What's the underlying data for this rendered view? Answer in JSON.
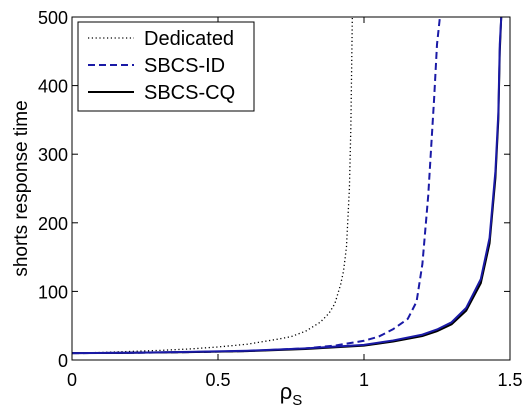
{
  "chart_data": {
    "type": "line",
    "title": "",
    "xlabel": "ρ",
    "xlabel_subscript": "S",
    "ylabel": "shorts response time",
    "xlim": [
      0,
      1.5
    ],
    "ylim": [
      0,
      500
    ],
    "xticks": [
      "0",
      "0.5",
      "1",
      "1.5"
    ],
    "yticks": [
      "0",
      "100",
      "200",
      "300",
      "400",
      "500"
    ],
    "grid": false,
    "legend_position": "top-left",
    "series": [
      {
        "name": "Dedicated",
        "style": "dotted",
        "color": "#000000",
        "x": [
          0.0,
          0.1,
          0.2,
          0.3,
          0.4,
          0.5,
          0.6,
          0.7,
          0.75,
          0.8,
          0.85,
          0.88,
          0.9,
          0.92,
          0.93,
          0.94,
          0.95,
          0.955,
          0.96
        ],
        "y": [
          10,
          11,
          12.5,
          14,
          16,
          19,
          23,
          30,
          34,
          42,
          55,
          68,
          82,
          110,
          130,
          165,
          250,
          340,
          500
        ]
      },
      {
        "name": "SBCS-ID",
        "style": "dashed",
        "color": "#1a1aa6",
        "x": [
          0.0,
          0.2,
          0.4,
          0.6,
          0.8,
          0.9,
          1.0,
          1.05,
          1.1,
          1.15,
          1.18,
          1.2,
          1.22,
          1.24,
          1.25,
          1.26
        ],
        "y": [
          10,
          10.5,
          11.5,
          13,
          17,
          21,
          28,
          34,
          45,
          60,
          85,
          140,
          240,
          380,
          460,
          500
        ]
      },
      {
        "name": "SBCS-CQ",
        "style": "solid",
        "color": "#000000",
        "x": [
          0.0,
          0.2,
          0.4,
          0.6,
          0.8,
          1.0,
          1.1,
          1.2,
          1.25,
          1.3,
          1.35,
          1.4,
          1.43,
          1.45,
          1.46,
          1.465,
          1.47
        ],
        "y": [
          10,
          10.5,
          11.5,
          13,
          16,
          21,
          27,
          35,
          42,
          52,
          72,
          112,
          170,
          265,
          350,
          450,
          500
        ]
      },
      {
        "name": "",
        "style": "solid",
        "color": "#1a1aa6",
        "x": [
          0.0,
          0.2,
          0.4,
          0.6,
          0.8,
          1.0,
          1.1,
          1.2,
          1.25,
          1.3,
          1.35,
          1.4,
          1.43,
          1.45,
          1.46,
          1.465,
          1.47
        ],
        "y": [
          10,
          10.6,
          11.8,
          13.5,
          17,
          22,
          28.5,
          37,
          44.5,
          55,
          76,
          118,
          178,
          275,
          360,
          460,
          500
        ]
      }
    ]
  }
}
